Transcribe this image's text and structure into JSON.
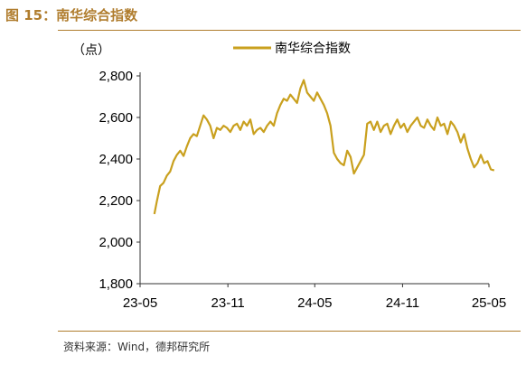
{
  "figure": {
    "title": "图 15：南华综合指数",
    "source": "资料来源：Wind，德邦研究所"
  },
  "colors": {
    "accent": "#b07d2e",
    "series_line": "#c9a01e",
    "axis": "#333333",
    "text": "#000000"
  },
  "chart_data": {
    "type": "line",
    "title": "",
    "xlabel": "",
    "ylabel": "（点）",
    "grid": false,
    "legend_position": "top-center",
    "xlim": [
      "2023-05",
      "2025-05"
    ],
    "ylim": [
      1800,
      2800
    ],
    "y_ticks": [
      1800,
      2000,
      2200,
      2400,
      2600,
      2800
    ],
    "y_tick_labels": [
      "1,800",
      "2,000",
      "2,200",
      "2,400",
      "2,600",
      "2,800"
    ],
    "x_ticks": [
      "2023-05",
      "2023-11",
      "2024-05",
      "2024-11",
      "2025-05"
    ],
    "x_tick_labels": [
      "23-05",
      "23-11",
      "24-05",
      "24-11",
      "25-05"
    ],
    "series": [
      {
        "name": "南华综合指数",
        "x": [
          "2023-05-31",
          "2023-06-05",
          "2023-06-12",
          "2023-06-19",
          "2023-06-26",
          "2023-07-03",
          "2023-07-10",
          "2023-07-17",
          "2023-07-24",
          "2023-07-31",
          "2023-08-07",
          "2023-08-14",
          "2023-08-21",
          "2023-08-28",
          "2023-09-04",
          "2023-09-11",
          "2023-09-18",
          "2023-09-25",
          "2023-10-02",
          "2023-10-09",
          "2023-10-16",
          "2023-10-23",
          "2023-10-30",
          "2023-11-06",
          "2023-11-13",
          "2023-11-20",
          "2023-11-27",
          "2023-12-04",
          "2023-12-11",
          "2023-12-18",
          "2023-12-25",
          "2024-01-01",
          "2024-01-08",
          "2024-01-15",
          "2024-01-22",
          "2024-01-29",
          "2024-02-05",
          "2024-02-12",
          "2024-02-19",
          "2024-02-26",
          "2024-03-04",
          "2024-03-11",
          "2024-03-18",
          "2024-03-25",
          "2024-04-01",
          "2024-04-08",
          "2024-04-15",
          "2024-04-22",
          "2024-04-29",
          "2024-05-06",
          "2024-05-13",
          "2024-05-20",
          "2024-05-27",
          "2024-06-03",
          "2024-06-10",
          "2024-06-17",
          "2024-06-24",
          "2024-07-01",
          "2024-07-08",
          "2024-07-15",
          "2024-07-22",
          "2024-07-29",
          "2024-08-05",
          "2024-08-12",
          "2024-08-19",
          "2024-08-26",
          "2024-09-02",
          "2024-09-09",
          "2024-09-16",
          "2024-09-23",
          "2024-09-30",
          "2024-10-07",
          "2024-10-14",
          "2024-10-21",
          "2024-10-28",
          "2024-11-04",
          "2024-11-11",
          "2024-11-18",
          "2024-11-25",
          "2024-12-02",
          "2024-12-09",
          "2024-12-16",
          "2024-12-23",
          "2024-12-30",
          "2025-01-06",
          "2025-01-13",
          "2025-01-20",
          "2025-01-27",
          "2025-02-03",
          "2025-02-10",
          "2025-02-17",
          "2025-02-24",
          "2025-03-03",
          "2025-03-10",
          "2025-03-17",
          "2025-03-24",
          "2025-03-31",
          "2025-04-07",
          "2025-04-14",
          "2025-04-21",
          "2025-04-28",
          "2025-05-05",
          "2025-05-12"
        ],
        "values": [
          2135,
          2195,
          2270,
          2285,
          2320,
          2340,
          2390,
          2420,
          2440,
          2415,
          2460,
          2500,
          2520,
          2510,
          2560,
          2610,
          2590,
          2560,
          2500,
          2550,
          2540,
          2560,
          2550,
          2530,
          2560,
          2570,
          2540,
          2580,
          2560,
          2590,
          2520,
          2540,
          2550,
          2530,
          2560,
          2580,
          2560,
          2620,
          2660,
          2690,
          2680,
          2710,
          2690,
          2670,
          2740,
          2780,
          2720,
          2700,
          2680,
          2720,
          2690,
          2660,
          2620,
          2560,
          2430,
          2400,
          2380,
          2370,
          2440,
          2410,
          2330,
          2360,
          2390,
          2420,
          2570,
          2580,
          2540,
          2580,
          2530,
          2560,
          2570,
          2520,
          2560,
          2590,
          2550,
          2570,
          2530,
          2560,
          2580,
          2600,
          2560,
          2550,
          2590,
          2560,
          2540,
          2600,
          2560,
          2570,
          2520,
          2580,
          2560,
          2530,
          2480,
          2520,
          2450,
          2400,
          2360,
          2380,
          2420,
          2380,
          2390,
          2350,
          2345
        ]
      }
    ]
  }
}
